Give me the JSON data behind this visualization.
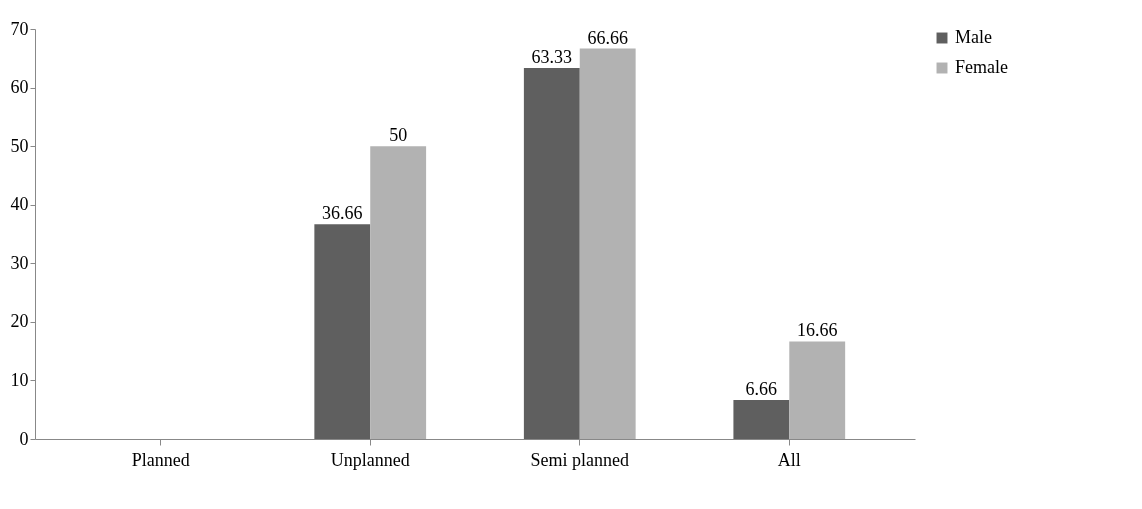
{
  "chart_data": {
    "type": "bar",
    "categories": [
      "Planned",
      "Unplanned",
      "Semi planned",
      "All"
    ],
    "series": [
      {
        "name": "Male",
        "color": "#5f5f5f",
        "values": [
          null,
          36.66,
          63.33,
          6.66
        ]
      },
      {
        "name": "Female",
        "color": "#b2b2b2",
        "values": [
          null,
          50,
          66.66,
          16.66
        ]
      }
    ],
    "ylim": [
      0,
      70
    ],
    "yticks": [
      0,
      10,
      20,
      30,
      40,
      50,
      60,
      70
    ],
    "data_labels": true,
    "legend": "right",
    "grid": false
  }
}
